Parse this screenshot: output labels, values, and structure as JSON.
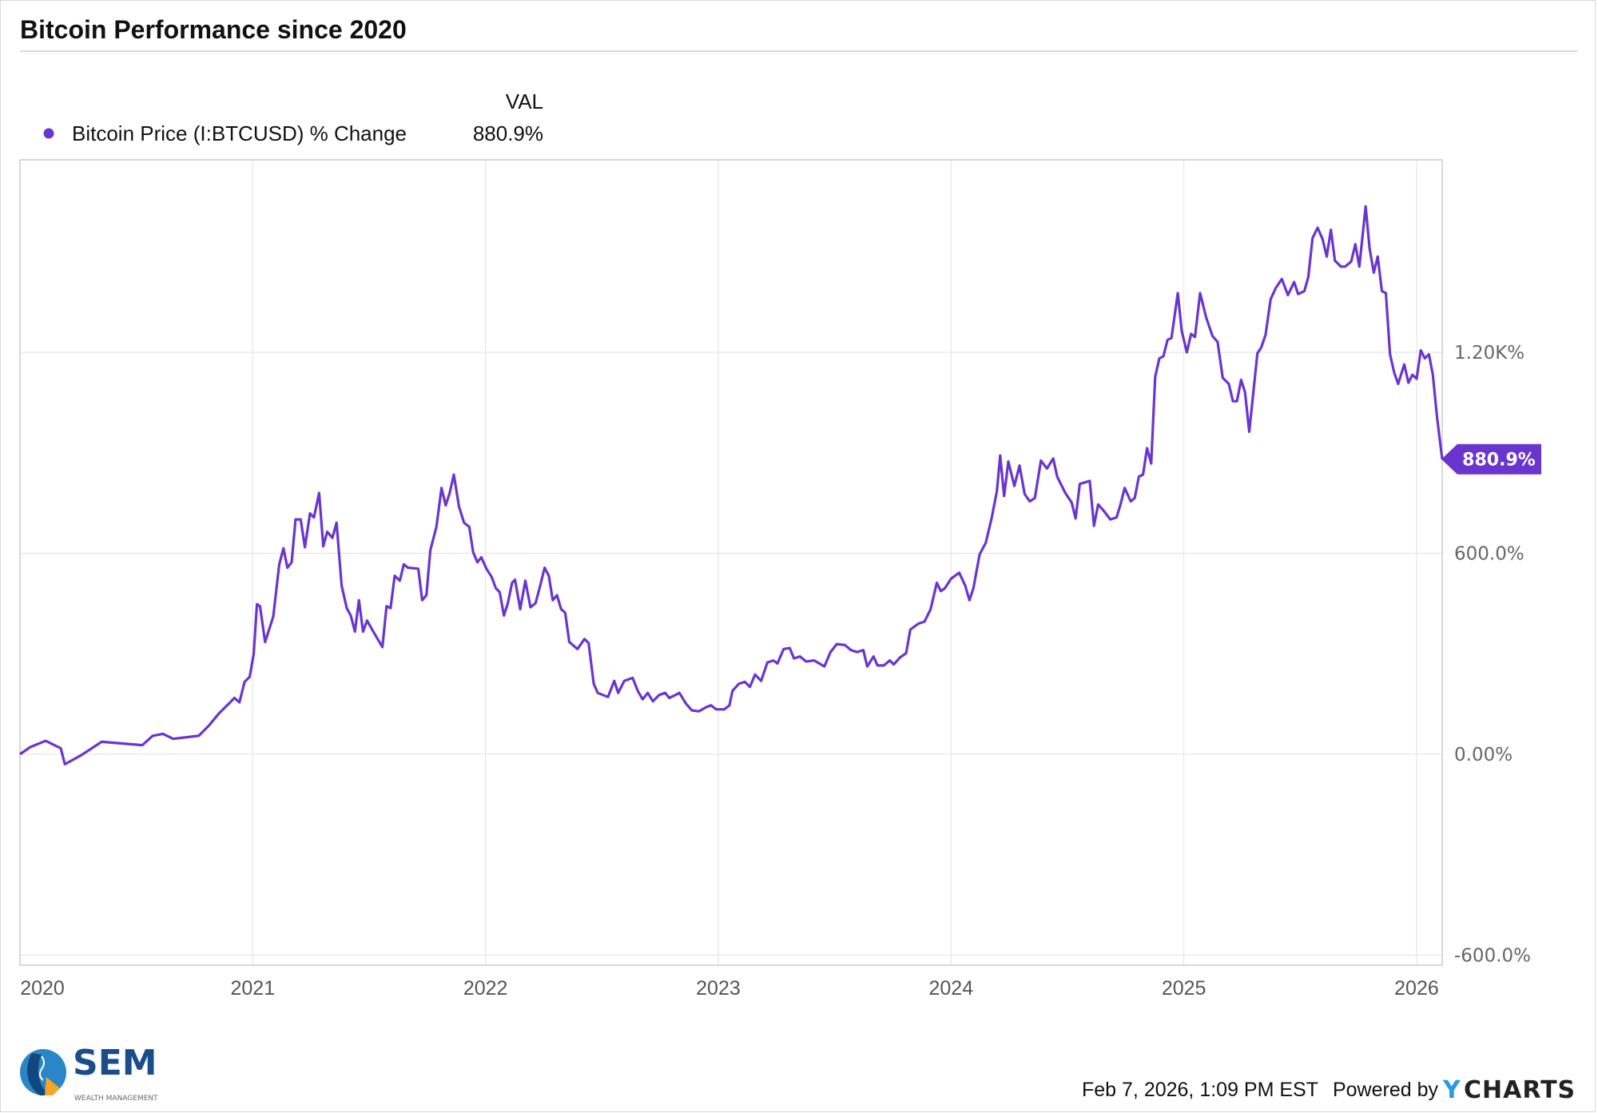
{
  "chart_data": {
    "type": "line",
    "title": "Bitcoin Performance since 2020",
    "legend_header": "VAL",
    "legend_placement": "top-left",
    "series": [
      {
        "name": "Bitcoin Price (I:BTCUSD) % Change",
        "last_value_label": "880.9%",
        "color": "#6a35cf",
        "points": [
          [
            2020.0,
            0
          ],
          [
            2020.044,
            21
          ],
          [
            2020.11,
            40
          ],
          [
            2020.175,
            18
          ],
          [
            2020.193,
            -30
          ],
          [
            2020.263,
            -3
          ],
          [
            2020.351,
            37
          ],
          [
            2020.526,
            27
          ],
          [
            2020.57,
            55
          ],
          [
            2020.614,
            61
          ],
          [
            2020.658,
            46
          ],
          [
            2020.768,
            55
          ],
          [
            2020.811,
            85
          ],
          [
            2020.855,
            122
          ],
          [
            2020.899,
            152
          ],
          [
            2020.921,
            168
          ],
          [
            2020.943,
            155
          ],
          [
            2020.965,
            216
          ],
          [
            2020.987,
            231
          ],
          [
            2021.004,
            299
          ],
          [
            2021.018,
            448
          ],
          [
            2021.031,
            442
          ],
          [
            2021.053,
            335
          ],
          [
            2021.088,
            411
          ],
          [
            2021.114,
            567
          ],
          [
            2021.132,
            615
          ],
          [
            2021.149,
            557
          ],
          [
            2021.167,
            573
          ],
          [
            2021.184,
            701
          ],
          [
            2021.206,
            701
          ],
          [
            2021.224,
            618
          ],
          [
            2021.246,
            719
          ],
          [
            2021.263,
            707
          ],
          [
            2021.285,
            780
          ],
          [
            2021.303,
            621
          ],
          [
            2021.32,
            664
          ],
          [
            2021.342,
            646
          ],
          [
            2021.36,
            691
          ],
          [
            2021.382,
            503
          ],
          [
            2021.404,
            436
          ],
          [
            2021.421,
            414
          ],
          [
            2021.439,
            366
          ],
          [
            2021.456,
            460
          ],
          [
            2021.474,
            366
          ],
          [
            2021.491,
            399
          ],
          [
            2021.518,
            366
          ],
          [
            2021.557,
            320
          ],
          [
            2021.575,
            442
          ],
          [
            2021.592,
            436
          ],
          [
            2021.61,
            533
          ],
          [
            2021.632,
            518
          ],
          [
            2021.649,
            567
          ],
          [
            2021.667,
            557
          ],
          [
            2021.711,
            554
          ],
          [
            2021.728,
            460
          ],
          [
            2021.746,
            475
          ],
          [
            2021.763,
            609
          ],
          [
            2021.789,
            679
          ],
          [
            2021.811,
            795
          ],
          [
            2021.829,
            743
          ],
          [
            2021.846,
            780
          ],
          [
            2021.864,
            835
          ],
          [
            2021.886,
            740
          ],
          [
            2021.908,
            691
          ],
          [
            2021.93,
            679
          ],
          [
            2021.947,
            603
          ],
          [
            2021.965,
            573
          ],
          [
            2021.982,
            588
          ],
          [
            2022.004,
            554
          ],
          [
            2022.026,
            530
          ],
          [
            2022.044,
            496
          ],
          [
            2022.061,
            484
          ],
          [
            2022.079,
            414
          ],
          [
            2022.096,
            451
          ],
          [
            2022.114,
            512
          ],
          [
            2022.127,
            521
          ],
          [
            2022.149,
            433
          ],
          [
            2022.171,
            518
          ],
          [
            2022.193,
            439
          ],
          [
            2022.215,
            451
          ],
          [
            2022.237,
            509
          ],
          [
            2022.254,
            557
          ],
          [
            2022.272,
            533
          ],
          [
            2022.289,
            460
          ],
          [
            2022.307,
            475
          ],
          [
            2022.325,
            433
          ],
          [
            2022.342,
            423
          ],
          [
            2022.36,
            335
          ],
          [
            2022.395,
            314
          ],
          [
            2022.425,
            344
          ],
          [
            2022.443,
            332
          ],
          [
            2022.465,
            210
          ],
          [
            2022.482,
            183
          ],
          [
            2022.526,
            171
          ],
          [
            2022.553,
            219
          ],
          [
            2022.57,
            183
          ],
          [
            2022.596,
            219
          ],
          [
            2022.632,
            228
          ],
          [
            2022.654,
            189
          ],
          [
            2022.675,
            164
          ],
          [
            2022.697,
            183
          ],
          [
            2022.719,
            158
          ],
          [
            2022.746,
            177
          ],
          [
            2022.772,
            183
          ],
          [
            2022.789,
            168
          ],
          [
            2022.816,
            177
          ],
          [
            2022.833,
            183
          ],
          [
            2022.86,
            152
          ],
          [
            2022.886,
            131
          ],
          [
            2022.917,
            128
          ],
          [
            2022.947,
            140
          ],
          [
            2022.969,
            146
          ],
          [
            2022.991,
            134
          ],
          [
            2023.026,
            134
          ],
          [
            2023.048,
            146
          ],
          [
            2023.061,
            189
          ],
          [
            2023.088,
            210
          ],
          [
            2023.114,
            216
          ],
          [
            2023.136,
            201
          ],
          [
            2023.158,
            238
          ],
          [
            2023.184,
            219
          ],
          [
            2023.211,
            274
          ],
          [
            2023.237,
            280
          ],
          [
            2023.254,
            271
          ],
          [
            2023.281,
            314
          ],
          [
            2023.307,
            317
          ],
          [
            2023.325,
            286
          ],
          [
            2023.351,
            292
          ],
          [
            2023.377,
            277
          ],
          [
            2023.412,
            280
          ],
          [
            2023.456,
            262
          ],
          [
            2023.482,
            305
          ],
          [
            2023.509,
            329
          ],
          [
            2023.544,
            326
          ],
          [
            2023.57,
            311
          ],
          [
            2023.596,
            305
          ],
          [
            2023.623,
            311
          ],
          [
            2023.64,
            262
          ],
          [
            2023.667,
            292
          ],
          [
            2023.684,
            265
          ],
          [
            2023.711,
            265
          ],
          [
            2023.737,
            280
          ],
          [
            2023.754,
            268
          ],
          [
            2023.781,
            289
          ],
          [
            2023.807,
            302
          ],
          [
            2023.825,
            372
          ],
          [
            2023.86,
            390
          ],
          [
            2023.886,
            396
          ],
          [
            2023.912,
            433
          ],
          [
            2023.939,
            512
          ],
          [
            2023.956,
            487
          ],
          [
            2023.974,
            496
          ],
          [
            2024.0,
            524
          ],
          [
            2024.035,
            542
          ],
          [
            2024.061,
            503
          ],
          [
            2024.079,
            460
          ],
          [
            2024.096,
            496
          ],
          [
            2024.123,
            597
          ],
          [
            2024.149,
            631
          ],
          [
            2024.175,
            707
          ],
          [
            2024.197,
            786
          ],
          [
            2024.211,
            892
          ],
          [
            2024.228,
            771
          ],
          [
            2024.246,
            874
          ],
          [
            2024.272,
            801
          ],
          [
            2024.294,
            862
          ],
          [
            2024.316,
            777
          ],
          [
            2024.338,
            755
          ],
          [
            2024.36,
            765
          ],
          [
            2024.386,
            877
          ],
          [
            2024.412,
            853
          ],
          [
            2024.439,
            883
          ],
          [
            2024.456,
            829
          ],
          [
            2024.491,
            780
          ],
          [
            2024.518,
            752
          ],
          [
            2024.535,
            704
          ],
          [
            2024.553,
            807
          ],
          [
            2024.596,
            816
          ],
          [
            2024.614,
            682
          ],
          [
            2024.632,
            746
          ],
          [
            2024.658,
            725
          ],
          [
            2024.684,
            701
          ],
          [
            2024.711,
            707
          ],
          [
            2024.728,
            746
          ],
          [
            2024.746,
            795
          ],
          [
            2024.772,
            755
          ],
          [
            2024.789,
            765
          ],
          [
            2024.807,
            829
          ],
          [
            2024.825,
            835
          ],
          [
            2024.842,
            914
          ],
          [
            2024.86,
            868
          ],
          [
            2024.877,
            1127
          ],
          [
            2024.895,
            1182
          ],
          [
            2024.912,
            1188
          ],
          [
            2024.93,
            1237
          ],
          [
            2024.947,
            1243
          ],
          [
            2024.974,
            1377
          ],
          [
            2024.991,
            1264
          ],
          [
            2025.013,
            1200
          ],
          [
            2025.031,
            1255
          ],
          [
            2025.048,
            1246
          ],
          [
            2025.07,
            1377
          ],
          [
            2025.096,
            1304
          ],
          [
            2025.123,
            1249
          ],
          [
            2025.145,
            1231
          ],
          [
            2025.167,
            1124
          ],
          [
            2025.193,
            1106
          ],
          [
            2025.211,
            1054
          ],
          [
            2025.228,
            1054
          ],
          [
            2025.246,
            1118
          ],
          [
            2025.263,
            1081
          ],
          [
            2025.281,
            963
          ],
          [
            2025.298,
            1075
          ],
          [
            2025.316,
            1197
          ],
          [
            2025.333,
            1215
          ],
          [
            2025.351,
            1252
          ],
          [
            2025.373,
            1359
          ],
          [
            2025.395,
            1392
          ],
          [
            2025.421,
            1419
          ],
          [
            2025.447,
            1371
          ],
          [
            2025.474,
            1410
          ],
          [
            2025.491,
            1374
          ],
          [
            2025.518,
            1383
          ],
          [
            2025.535,
            1426
          ],
          [
            2025.553,
            1541
          ],
          [
            2025.575,
            1572
          ],
          [
            2025.596,
            1538
          ],
          [
            2025.614,
            1486
          ],
          [
            2025.632,
            1566
          ],
          [
            2025.649,
            1474
          ],
          [
            2025.675,
            1456
          ],
          [
            2025.693,
            1456
          ],
          [
            2025.719,
            1471
          ],
          [
            2025.737,
            1523
          ],
          [
            2025.754,
            1456
          ],
          [
            2025.781,
            1636
          ],
          [
            2025.798,
            1511
          ],
          [
            2025.816,
            1438
          ],
          [
            2025.833,
            1486
          ],
          [
            2025.851,
            1383
          ],
          [
            2025.868,
            1377
          ],
          [
            2025.886,
            1194
          ],
          [
            2025.904,
            1139
          ],
          [
            2025.921,
            1106
          ],
          [
            2025.947,
            1164
          ],
          [
            2025.965,
            1109
          ],
          [
            2025.982,
            1133
          ],
          [
            2026.0,
            1121
          ],
          [
            2026.018,
            1206
          ],
          [
            2026.035,
            1182
          ],
          [
            2026.053,
            1194
          ],
          [
            2026.07,
            1133
          ],
          [
            2026.088,
            1005
          ],
          [
            2026.11,
            880.9
          ]
        ]
      }
    ],
    "xlim": [
      2020.0,
      2026.11
    ],
    "ylim": [
      -630,
      1775
    ],
    "x_ticks": [
      {
        "value": 2020,
        "label": "2020"
      },
      {
        "value": 2021,
        "label": "2021"
      },
      {
        "value": 2022,
        "label": "2022"
      },
      {
        "value": 2023,
        "label": "2023"
      },
      {
        "value": 2024,
        "label": "2024"
      },
      {
        "value": 2025,
        "label": "2025"
      },
      {
        "value": 2026,
        "label": "2026"
      }
    ],
    "y_ticks": [
      {
        "value": 1200,
        "label": "1.20K%"
      },
      {
        "value": 600,
        "label": "600.0%"
      },
      {
        "value": 0,
        "label": "0.00%"
      },
      {
        "value": -600,
        "label": "-600.0%"
      }
    ],
    "grid": true,
    "xlabel": "",
    "ylabel": ""
  },
  "footer": {
    "timestamp": "Feb 7, 2026, 1:09 PM EST",
    "powered_by": "Powered by",
    "ycharts_y": "Y",
    "ycharts_rest": "CHARTS",
    "brand_name": "SEM",
    "brand_sub": "WEALTH MANAGEMENT"
  },
  "colors": {
    "accent": "#6a35cf",
    "grid": "#e6e6e6",
    "ycharts_blue": "#2a9be0",
    "sem_blue": "#1b4d8a"
  }
}
